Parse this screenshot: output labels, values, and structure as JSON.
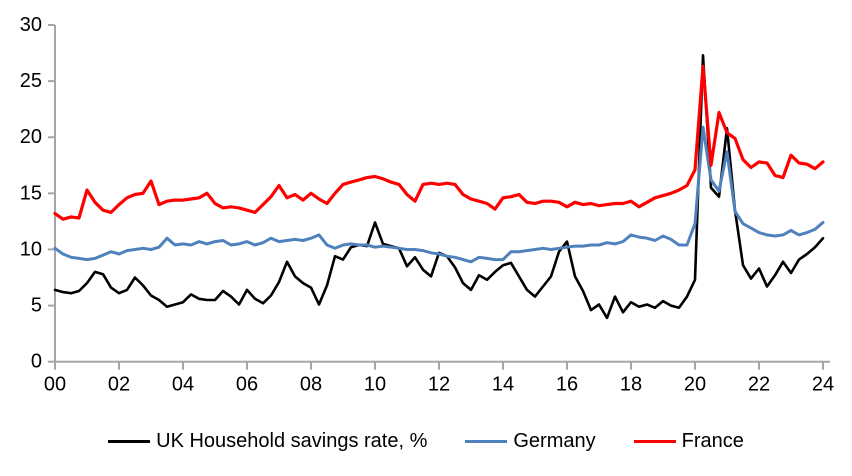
{
  "chart_data": {
    "type": "line",
    "title": "",
    "xlabel": "",
    "ylabel": "",
    "x_start_year": 2000,
    "points_per_year": 4,
    "x_tick_years": [
      2000,
      2002,
      2004,
      2006,
      2008,
      2010,
      2012,
      2014,
      2016,
      2018,
      2020,
      2022,
      2024
    ],
    "x_tick_labels": [
      "00",
      "02",
      "04",
      "06",
      "08",
      "10",
      "12",
      "14",
      "16",
      "18",
      "20",
      "22",
      "24"
    ],
    "ylim": [
      0,
      30
    ],
    "yticks": [
      0,
      5,
      10,
      15,
      20,
      25,
      30
    ],
    "ytick_labels": [
      "0",
      "5",
      "10",
      "15",
      "20",
      "25",
      "30"
    ],
    "grid": false,
    "legend_position": "bottom",
    "axis_color": "#a6a6a6",
    "series": [
      {
        "name": "UK Household savings rate, %",
        "color": "#000000",
        "stroke_width": 2.6,
        "values": [
          6.4,
          6.2,
          6.1,
          6.3,
          7.0,
          8.0,
          7.8,
          6.6,
          6.1,
          6.4,
          7.5,
          6.8,
          5.9,
          5.5,
          4.9,
          5.1,
          5.3,
          6.0,
          5.6,
          5.5,
          5.5,
          6.3,
          5.8,
          5.1,
          6.4,
          5.6,
          5.2,
          5.9,
          7.1,
          8.9,
          7.6,
          7.0,
          6.6,
          5.1,
          6.8,
          9.4,
          9.1,
          10.2,
          10.4,
          10.3,
          12.4,
          10.5,
          10.3,
          10.1,
          8.5,
          9.3,
          8.2,
          7.6,
          9.7,
          9.4,
          8.4,
          7.0,
          6.4,
          7.7,
          7.3,
          8.0,
          8.6,
          8.8,
          7.6,
          6.4,
          5.8,
          6.7,
          7.6,
          9.8,
          10.7,
          7.6,
          6.3,
          4.6,
          5.1,
          3.9,
          5.8,
          4.4,
          5.3,
          4.9,
          5.1,
          4.8,
          5.4,
          5.0,
          4.8,
          5.8,
          7.3,
          27.3,
          15.5,
          14.7,
          20.8,
          13.5,
          8.6,
          7.4,
          8.3,
          6.7,
          7.7,
          8.9,
          7.9,
          9.1,
          9.6,
          10.2,
          11.0
        ]
      },
      {
        "name": "Germany",
        "color": "#4f81bd",
        "stroke_width": 3.0,
        "values": [
          10.1,
          9.6,
          9.3,
          9.2,
          9.1,
          9.2,
          9.5,
          9.8,
          9.6,
          9.9,
          10.0,
          10.1,
          10.0,
          10.2,
          11.0,
          10.4,
          10.5,
          10.4,
          10.7,
          10.5,
          10.7,
          10.8,
          10.4,
          10.5,
          10.7,
          10.4,
          10.6,
          11.0,
          10.7,
          10.8,
          10.9,
          10.8,
          11.0,
          11.3,
          10.4,
          10.1,
          10.4,
          10.5,
          10.4,
          10.4,
          10.2,
          10.3,
          10.2,
          10.1,
          10.0,
          10.0,
          9.9,
          9.7,
          9.6,
          9.4,
          9.3,
          9.1,
          8.9,
          9.3,
          9.2,
          9.1,
          9.1,
          9.8,
          9.8,
          9.9,
          10.0,
          10.1,
          10.0,
          10.1,
          10.2,
          10.3,
          10.3,
          10.4,
          10.4,
          10.6,
          10.5,
          10.7,
          11.3,
          11.1,
          11.0,
          10.8,
          11.2,
          10.9,
          10.4,
          10.4,
          12.3,
          20.9,
          16.2,
          15.2,
          18.7,
          13.4,
          12.3,
          11.9,
          11.5,
          11.3,
          11.2,
          11.3,
          11.7,
          11.3,
          11.5,
          11.8,
          12.4
        ]
      },
      {
        "name": "France",
        "color": "#ff0000",
        "stroke_width": 3.2,
        "values": [
          13.2,
          12.7,
          12.9,
          12.8,
          15.3,
          14.2,
          13.5,
          13.3,
          14.0,
          14.6,
          14.9,
          15.0,
          16.1,
          14.0,
          14.3,
          14.4,
          14.4,
          14.5,
          14.6,
          15.0,
          14.1,
          13.7,
          13.8,
          13.7,
          13.5,
          13.3,
          14.0,
          14.7,
          15.7,
          14.6,
          14.9,
          14.4,
          15.0,
          14.5,
          14.1,
          15.0,
          15.8,
          16.0,
          16.2,
          16.4,
          16.5,
          16.3,
          16.0,
          15.8,
          14.9,
          14.3,
          15.8,
          15.9,
          15.8,
          15.9,
          15.8,
          14.9,
          14.5,
          14.3,
          14.1,
          13.6,
          14.6,
          14.7,
          14.9,
          14.2,
          14.1,
          14.3,
          14.3,
          14.2,
          13.8,
          14.2,
          14.0,
          14.1,
          13.9,
          14.0,
          14.1,
          14.1,
          14.3,
          13.8,
          14.2,
          14.6,
          14.8,
          15.0,
          15.3,
          15.7,
          17.1,
          26.3,
          17.5,
          22.2,
          20.4,
          19.9,
          18.0,
          17.3,
          17.8,
          17.7,
          16.6,
          16.4,
          18.4,
          17.7,
          17.6,
          17.2,
          17.8
        ]
      }
    ]
  },
  "legend": {
    "items": [
      {
        "label": "UK Household savings rate, %",
        "color": "#000000"
      },
      {
        "label": "Germany",
        "color": "#4f81bd"
      },
      {
        "label": "France",
        "color": "#ff0000"
      }
    ]
  }
}
